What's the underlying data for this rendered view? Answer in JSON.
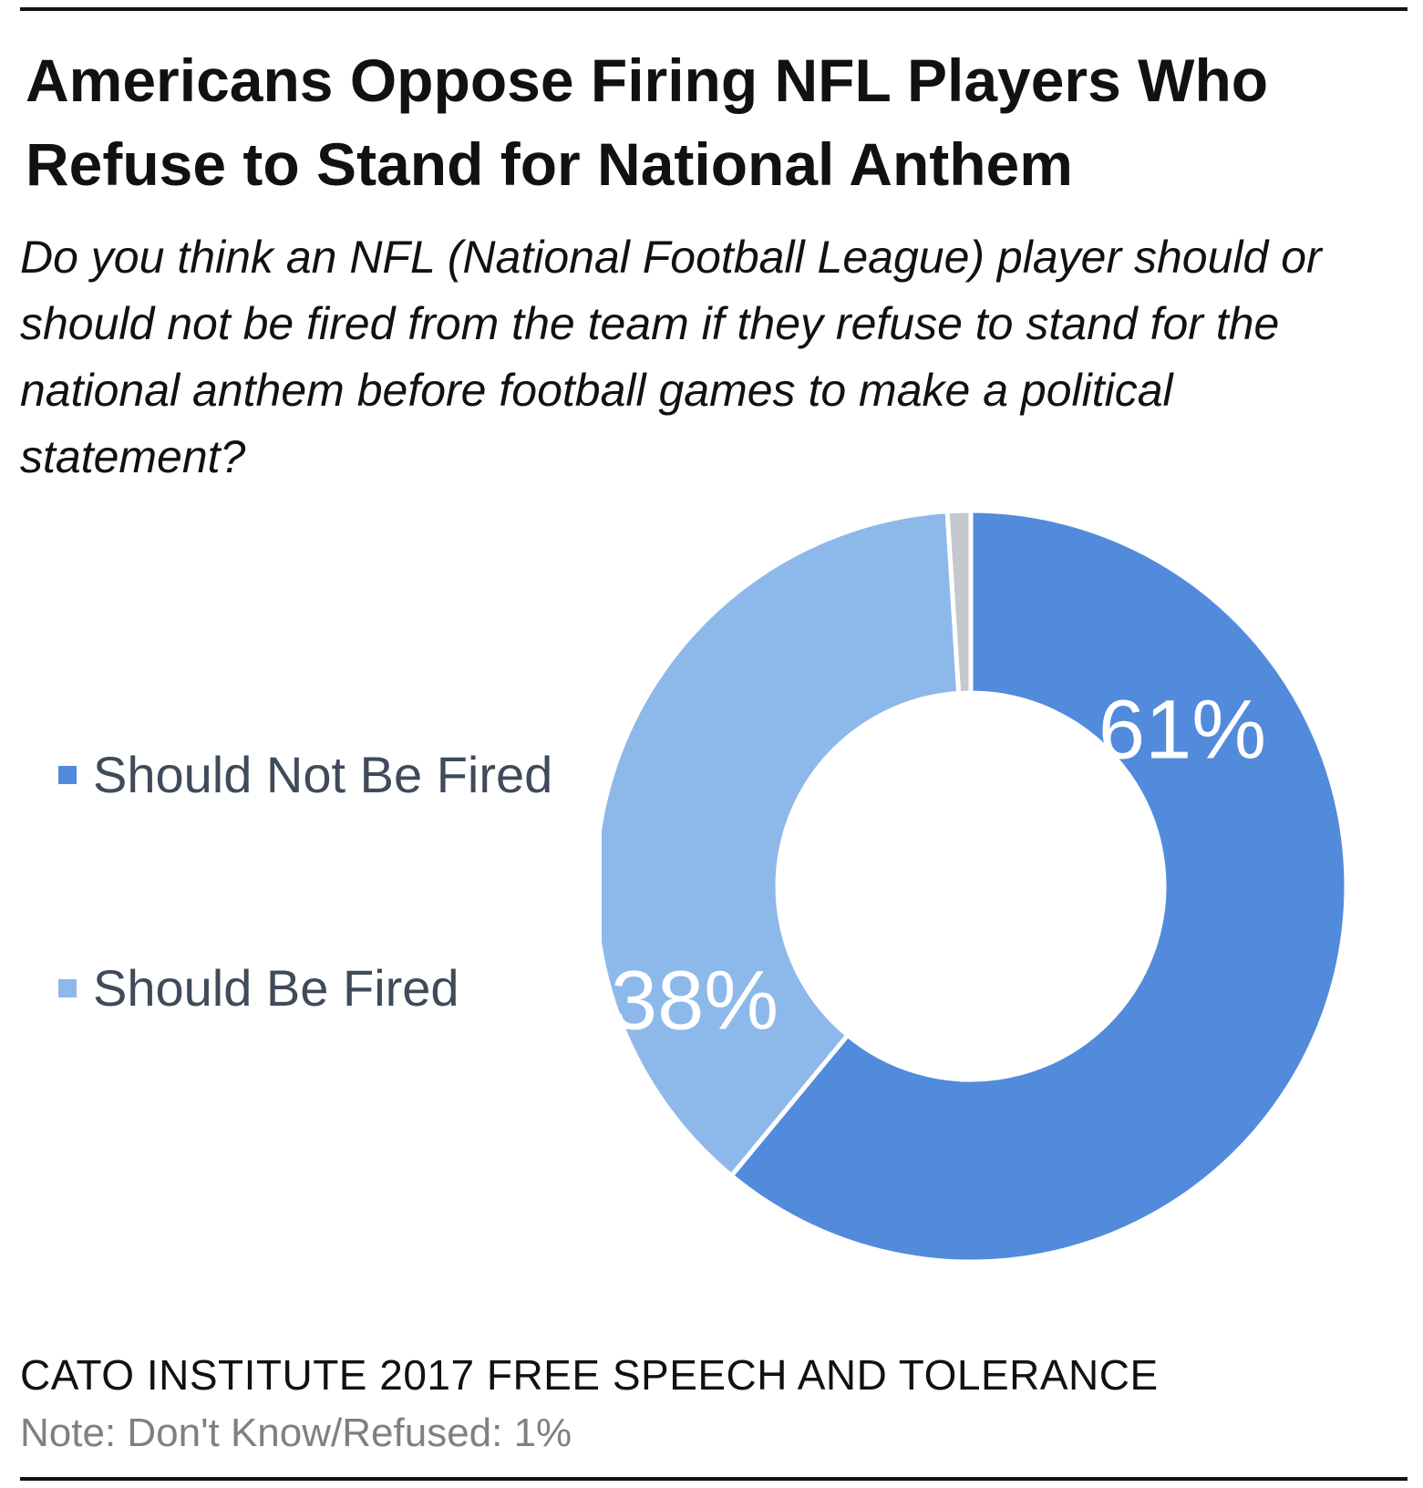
{
  "title": "Americans Oppose Firing NFL Players Who Refuse to Stand for National Anthem",
  "question": "Do you think an NFL (National Football League) player should or should not be fired from the team if they refuse to stand for the national anthem before football games to make a political statement?",
  "source": "CATO INSTITUTE 2017 FREE SPEECH AND TOLERANCE",
  "note": "Note: Don't Know/Refused: 1%",
  "colors": {
    "should_not_be_fired": "#528bdc",
    "should_be_fired": "#8db8ea",
    "dont_know": "#c5c8cc",
    "title_text": "#111111",
    "legend_text": "#3f4a5a",
    "note_text": "#808080",
    "label_text": "#ffffff"
  },
  "legend": [
    {
      "label": "Should Not Be Fired",
      "color": "#528bdc"
    },
    {
      "label": "Should Be Fired",
      "color": "#8db8ea"
    }
  ],
  "chart_data": {
    "type": "pie",
    "donut": true,
    "legend_position": "left",
    "series": [
      {
        "name": "Should Not Be Fired",
        "value": 61,
        "label": "61%",
        "color": "#528bdc"
      },
      {
        "name": "Should Be Fired",
        "value": 38,
        "label": "38%",
        "color": "#8db8ea"
      },
      {
        "name": "Don't Know/Refused",
        "value": 1,
        "label": "",
        "color": "#c5c8cc"
      }
    ]
  }
}
